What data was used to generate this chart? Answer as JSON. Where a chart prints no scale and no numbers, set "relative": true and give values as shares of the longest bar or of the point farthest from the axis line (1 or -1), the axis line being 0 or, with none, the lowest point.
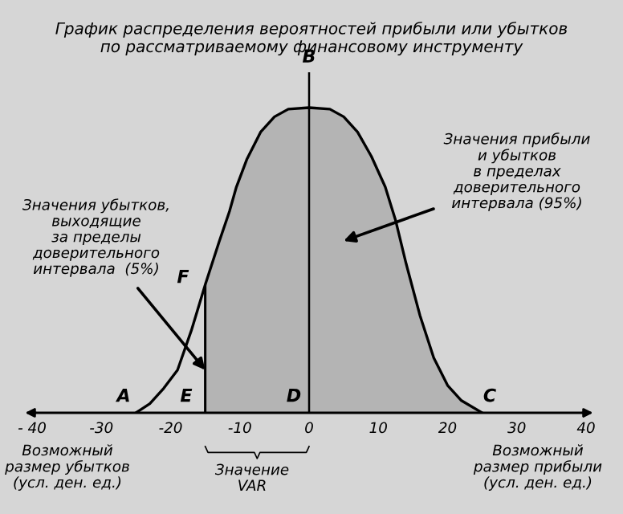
{
  "chart_data": {
    "type": "line",
    "relative": true,
    "title": "График распределения вероятностей прибыли или убытков\nпо рассматриваемому финансовому инструменту",
    "xlim": [
      -40,
      40
    ],
    "xticks": [
      {
        "value": -40,
        "label": "- 40"
      },
      -30,
      -20,
      -10,
      0,
      10,
      20,
      30,
      40
    ],
    "series": [
      {
        "color": "#000000",
        "x": [
          -25,
          -23,
          -21,
          -19,
          -17,
          -15,
          -13,
          -11.5,
          -10.5,
          -9,
          -7,
          -5,
          -3,
          0,
          3,
          5,
          7,
          9,
          11,
          12.5,
          14,
          16,
          18,
          20,
          22,
          25
        ],
        "values": [
          0,
          0.03,
          0.08,
          0.14,
          0.27,
          0.42,
          0.56,
          0.66,
          0.74,
          0.83,
          0.92,
          0.97,
          0.995,
          1,
          0.995,
          0.97,
          0.92,
          0.84,
          0.74,
          0.63,
          0.49,
          0.32,
          0.18,
          0.09,
          0.04,
          0
        ]
      },
      {
        "type": "area",
        "color": "#b4b4b4",
        "x": [
          -15,
          -13,
          -11.5,
          -10.5,
          -9,
          -7,
          -5,
          -3,
          0,
          3,
          5,
          7,
          9,
          11,
          12.5,
          14,
          16,
          18,
          20,
          22,
          25
        ],
        "values": [
          0.42,
          0.56,
          0.66,
          0.74,
          0.83,
          0.92,
          0.97,
          0.995,
          1,
          0.995,
          0.97,
          0.92,
          0.84,
          0.74,
          0.63,
          0.49,
          0.32,
          0.18,
          0.09,
          0.04,
          0
        ]
      }
    ],
    "ref_lines": [
      {
        "axis": "x",
        "value": 0,
        "label": "B",
        "color": "#000000"
      }
    ],
    "annotations": [
      "Значения прибыли\nи убытков\nв пределах\nдоверительного\nинтервала (95%)",
      {
        "text": "Значения убытков,\nвыходящие\nза пределы\nдоверительного\nинтервала  (5%)",
        "x": -15,
        "y": 0.14
      },
      "A",
      "E",
      "D",
      "C",
      "F",
      "Возможный\nразмер убытков\n(усл. ден. ед.)",
      "Значение\nVAR",
      "Возможный\nразмер прибыли\n(усл. ден. ед.)"
    ]
  }
}
